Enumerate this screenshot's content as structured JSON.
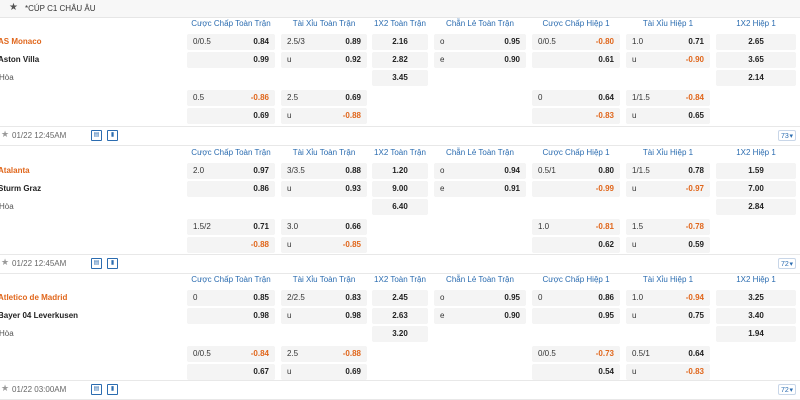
{
  "league": {
    "star": "★",
    "title": "*CÚP C1 CHÂU ÂU"
  },
  "col_headers": [
    "Cược Chấp Toàn Trận",
    "Tài Xỉu Toàn Trận",
    "1X2 Toàn Trận",
    "Chẵn Lẻ Toàn Trận",
    "Cược Chấp Hiệp 1",
    "Tài Xỉu Hiệp 1",
    "1X2 Hiệp 1"
  ],
  "matches": [
    {
      "home": "AS Monaco",
      "away": "Aston Villa",
      "draw": "Hòa",
      "main": {
        "hc_ft": [
          [
            "0/0.5",
            "0.84"
          ],
          [
            "",
            "0.99"
          ]
        ],
        "ou_ft": [
          [
            "2.5/3",
            "0.89"
          ],
          [
            "u",
            "0.92"
          ]
        ],
        "x12_ft": [
          "2.16",
          "2.82",
          "3.45"
        ],
        "oe_ft": [
          [
            "o",
            "0.95"
          ],
          [
            "e",
            "0.90"
          ]
        ],
        "hc_h1": [
          [
            "0/0.5",
            "-0.80"
          ],
          [
            "",
            "0.61"
          ]
        ],
        "ou_h1": [
          [
            "1.0",
            "0.71"
          ],
          [
            "u",
            "-0.90"
          ]
        ],
        "x12_h1": [
          "2.65",
          "3.65",
          "2.14"
        ]
      },
      "alt": {
        "hc_ft": [
          [
            "0.5",
            "-0.86"
          ],
          [
            "",
            "0.69"
          ]
        ],
        "ou_ft": [
          [
            "2.5",
            "0.69"
          ],
          [
            "u",
            "-0.88"
          ]
        ],
        "hc_h1": [
          [
            "0",
            "0.64"
          ],
          [
            "",
            "-0.83"
          ]
        ],
        "ou_h1": [
          [
            "1/1.5",
            "-0.84"
          ],
          [
            "u",
            "0.65"
          ]
        ]
      },
      "time": "01/22 12:45AM",
      "more": "73"
    },
    {
      "home": "Atalanta",
      "away": "Sturm Graz",
      "draw": "Hòa",
      "main": {
        "hc_ft": [
          [
            "2.0",
            "0.97"
          ],
          [
            "",
            "0.86"
          ]
        ],
        "ou_ft": [
          [
            "3/3.5",
            "0.88"
          ],
          [
            "u",
            "0.93"
          ]
        ],
        "x12_ft": [
          "1.20",
          "9.00",
          "6.40"
        ],
        "oe_ft": [
          [
            "o",
            "0.94"
          ],
          [
            "e",
            "0.91"
          ]
        ],
        "hc_h1": [
          [
            "0.5/1",
            "0.80"
          ],
          [
            "",
            "-0.99"
          ]
        ],
        "ou_h1": [
          [
            "1/1.5",
            "0.78"
          ],
          [
            "u",
            "-0.97"
          ]
        ],
        "x12_h1": [
          "1.59",
          "7.00",
          "2.84"
        ]
      },
      "alt": {
        "hc_ft": [
          [
            "1.5/2",
            "0.71"
          ],
          [
            "",
            "-0.88"
          ]
        ],
        "ou_ft": [
          [
            "3.0",
            "0.66"
          ],
          [
            "u",
            "-0.85"
          ]
        ],
        "hc_h1": [
          [
            "1.0",
            "-0.81"
          ],
          [
            "",
            "0.62"
          ]
        ],
        "ou_h1": [
          [
            "1.5",
            "-0.78"
          ],
          [
            "u",
            "0.59"
          ]
        ]
      },
      "time": "01/22 12:45AM",
      "more": "72"
    },
    {
      "home": "Atletico de Madrid",
      "away": "Bayer 04 Leverkusen",
      "draw": "Hòa",
      "main": {
        "hc_ft": [
          [
            "0",
            "0.85"
          ],
          [
            "",
            "0.98"
          ]
        ],
        "ou_ft": [
          [
            "2/2.5",
            "0.83"
          ],
          [
            "u",
            "0.98"
          ]
        ],
        "x12_ft": [
          "2.45",
          "2.63",
          "3.20"
        ],
        "oe_ft": [
          [
            "o",
            "0.95"
          ],
          [
            "e",
            "0.90"
          ]
        ],
        "hc_h1": [
          [
            "0",
            "0.86"
          ],
          [
            "",
            "0.95"
          ]
        ],
        "ou_h1": [
          [
            "1.0",
            "-0.94"
          ],
          [
            "u",
            "0.75"
          ]
        ],
        "x12_h1": [
          "3.25",
          "3.40",
          "1.94"
        ]
      },
      "alt": {
        "hc_ft": [
          [
            "0/0.5",
            "-0.84"
          ],
          [
            "",
            "0.67"
          ]
        ],
        "ou_ft": [
          [
            "2.5",
            "-0.88"
          ],
          [
            "u",
            "0.69"
          ]
        ],
        "hc_h1": [
          [
            "0/0.5",
            "-0.73"
          ],
          [
            "",
            "0.54"
          ]
        ],
        "ou_h1": [
          [
            "0.5/1",
            "0.64"
          ],
          [
            "u",
            "-0.83"
          ]
        ]
      },
      "time": "01/22 03:00AM",
      "more": "72"
    }
  ],
  "icons": {
    "star": "star-icon",
    "stats": "stats-icon",
    "bar": "bar-chart-icon"
  }
}
